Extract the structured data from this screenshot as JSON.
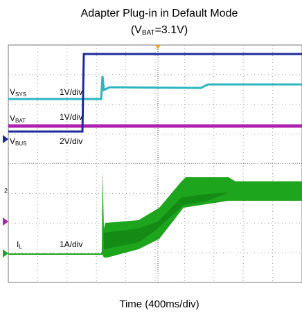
{
  "title": "Adapter Plug-in in Default Mode",
  "subtitle": {
    "open": "(",
    "symbol": "V",
    "subscript": "BAT",
    "rest": "=3.1V)"
  },
  "channels": [
    {
      "symbol": "V",
      "subscript": "SYS",
      "scale": "1V/div"
    },
    {
      "symbol": "V",
      "subscript": "BAT",
      "scale": "1V/div"
    },
    {
      "symbol": "V",
      "subscript": "BUS",
      "scale": "2V/div"
    },
    {
      "symbol": "I",
      "subscript": "L",
      "scale": "1A/div"
    }
  ],
  "x_label": "Time (400ms/div)"
}
